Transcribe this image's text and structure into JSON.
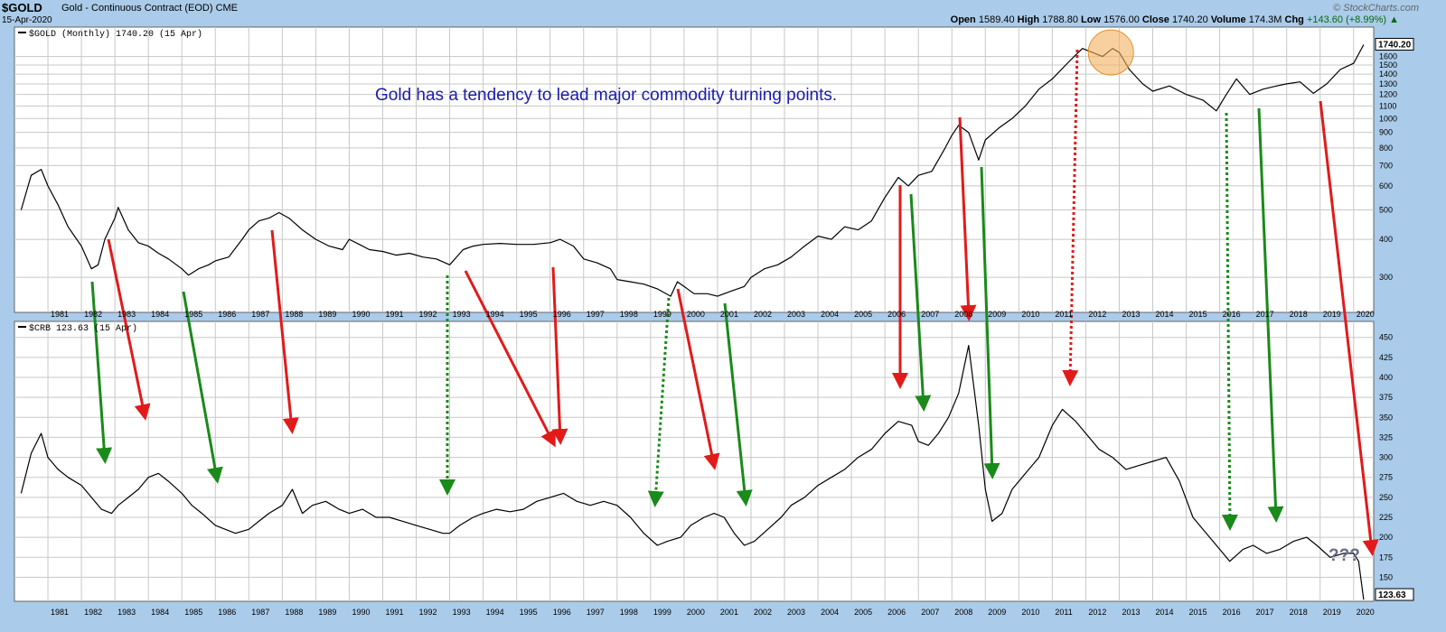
{
  "header": {
    "symbol": "$GOLD",
    "description": "Gold - Continuous Contract (EOD)",
    "exchange": "CME",
    "date": "15-Apr-2020",
    "brand": "© StockCharts.com",
    "open_label": "Open",
    "open": "1589.40",
    "high_label": "High",
    "high": "1788.80",
    "low_label": "Low",
    "low": "1576.00",
    "close_label": "Close",
    "close": "1740.20",
    "volume_label": "Volume",
    "volume": "174.3M",
    "chg_label": "Chg",
    "chg": "+143.60 (+8.99%)",
    "chg_arrow": "▲"
  },
  "colors": {
    "bg_frame": "#aacbe9",
    "plot_bg": "#ffffff",
    "grid": "#c8c8c8",
    "line": "#000000",
    "red_arrow": "#e21a1a",
    "green_arrow": "#1a8a1a",
    "annotation": "#1a1ab4",
    "highlight": "#f3b15f"
  },
  "chart_data": [
    {
      "type": "line",
      "series": [
        {
          "name": "$GOLD (Monthly)"
        }
      ],
      "legend": "$GOLD (Monthly) 1740.20 (15 Apr)",
      "last_value": "1740.20",
      "y_scale": "log",
      "ylim": [
        230,
        2000
      ],
      "yticks": [
        300,
        400,
        500,
        600,
        700,
        800,
        900,
        1000,
        1100,
        1200,
        1300,
        1400,
        1500,
        1600
      ],
      "ytick_labels": [
        "300",
        "400",
        "500",
        "600",
        "700",
        "800",
        "900",
        "1000",
        "1100",
        "1200",
        "1300",
        "1400",
        "1500",
        "1600"
      ],
      "annotation": "Gold has a tendency to lead major commodity turning points.",
      "highlight_circle": {
        "x": 2012.75,
        "y": 1650
      },
      "x": [
        1980.2,
        1980.5,
        1980.8,
        1981.0,
        1981.3,
        1981.6,
        1982.0,
        1982.3,
        1982.5,
        1982.7,
        1983.0,
        1983.1,
        1983.4,
        1983.7,
        1984.0,
        1984.3,
        1984.6,
        1985.0,
        1985.2,
        1985.5,
        1985.8,
        1986.0,
        1986.4,
        1986.8,
        1987.0,
        1987.3,
        1987.6,
        1987.9,
        1988.2,
        1988.6,
        1989.0,
        1989.4,
        1989.8,
        1990.0,
        1990.3,
        1990.6,
        1991.0,
        1991.4,
        1991.8,
        1992.2,
        1992.6,
        1993.0,
        1993.4,
        1993.7,
        1994.0,
        1994.5,
        1995.0,
        1995.5,
        1996.0,
        1996.3,
        1996.7,
        1997.0,
        1997.4,
        1997.8,
        1998.0,
        1998.4,
        1998.8,
        1999.2,
        1999.6,
        1999.8,
        2000.0,
        2000.3,
        2000.7,
        2001.0,
        2001.4,
        2001.8,
        2002.0,
        2002.4,
        2002.8,
        2003.2,
        2003.6,
        2004.0,
        2004.4,
        2004.8,
        2005.2,
        2005.6,
        2006.0,
        2006.4,
        2006.7,
        2007.0,
        2007.4,
        2007.8,
        2008.0,
        2008.2,
        2008.5,
        2008.8,
        2009.0,
        2009.4,
        2009.8,
        2010.2,
        2010.6,
        2011.0,
        2011.4,
        2011.7,
        2011.9,
        2012.2,
        2012.5,
        2012.8,
        2013.0,
        2013.3,
        2013.7,
        2014.0,
        2014.5,
        2015.0,
        2015.5,
        2015.9,
        2016.2,
        2016.5,
        2016.9,
        2017.3,
        2017.7,
        2018.0,
        2018.4,
        2018.8,
        2019.2,
        2019.6,
        2020.0,
        2020.3
      ],
      "values": [
        500,
        650,
        680,
        600,
        520,
        440,
        380,
        320,
        330,
        400,
        470,
        510,
        430,
        390,
        380,
        360,
        345,
        320,
        305,
        320,
        330,
        340,
        350,
        400,
        430,
        460,
        470,
        490,
        470,
        430,
        400,
        380,
        370,
        400,
        385,
        370,
        365,
        355,
        360,
        350,
        345,
        330,
        370,
        380,
        385,
        388,
        385,
        385,
        390,
        400,
        380,
        345,
        335,
        320,
        295,
        290,
        285,
        275,
        260,
        290,
        280,
        265,
        265,
        260,
        270,
        280,
        300,
        320,
        330,
        350,
        380,
        410,
        400,
        440,
        430,
        460,
        550,
        640,
        600,
        650,
        670,
        800,
        880,
        950,
        900,
        730,
        850,
        930,
        1000,
        1100,
        1250,
        1350,
        1500,
        1620,
        1700,
        1650,
        1600,
        1700,
        1650,
        1450,
        1300,
        1230,
        1280,
        1200,
        1150,
        1060,
        1200,
        1350,
        1200,
        1250,
        1280,
        1300,
        1320,
        1210,
        1300,
        1450,
        1520,
        1750
      ]
    },
    {
      "type": "line",
      "series": [
        {
          "name": "$CRB"
        }
      ],
      "legend": "$CRB 123.63 (15 Apr)",
      "last_value": "123.63",
      "ylim": [
        120,
        470
      ],
      "yticks": [
        150,
        175,
        200,
        225,
        250,
        275,
        300,
        325,
        350,
        375,
        400,
        425,
        450
      ],
      "ytick_labels": [
        "150",
        "175",
        "200",
        "225",
        "250",
        "275",
        "300",
        "325",
        "350",
        "375",
        "400",
        "425",
        "450"
      ],
      "annotation": "???",
      "x": [
        1980.2,
        1980.5,
        1980.8,
        1981.0,
        1981.3,
        1981.6,
        1982.0,
        1982.3,
        1982.6,
        1982.9,
        1983.1,
        1983.4,
        1983.7,
        1984.0,
        1984.3,
        1984.6,
        1985.0,
        1985.3,
        1985.6,
        1986.0,
        1986.3,
        1986.6,
        1987.0,
        1987.3,
        1987.6,
        1988.0,
        1988.3,
        1988.6,
        1988.9,
        1989.3,
        1989.7,
        1990.0,
        1990.4,
        1990.8,
        1991.2,
        1991.6,
        1992.0,
        1992.4,
        1992.8,
        1993.0,
        1993.3,
        1993.7,
        1994.0,
        1994.4,
        1994.8,
        1995.2,
        1995.6,
        1996.0,
        1996.4,
        1996.8,
        1997.2,
        1997.6,
        1998.0,
        1998.4,
        1998.8,
        1999.2,
        1999.5,
        1999.9,
        2000.2,
        2000.6,
        2000.9,
        2001.2,
        2001.5,
        2001.8,
        2002.1,
        2002.5,
        2002.9,
        2003.2,
        2003.6,
        2004.0,
        2004.4,
        2004.8,
        2005.2,
        2005.6,
        2006.0,
        2006.4,
        2006.8,
        2007.0,
        2007.3,
        2007.6,
        2007.9,
        2008.2,
        2008.5,
        2008.8,
        2009.0,
        2009.2,
        2009.5,
        2009.8,
        2010.2,
        2010.6,
        2011.0,
        2011.3,
        2011.7,
        2012.0,
        2012.4,
        2012.8,
        2013.2,
        2013.6,
        2014.0,
        2014.4,
        2014.8,
        2015.2,
        2015.6,
        2016.0,
        2016.3,
        2016.7,
        2017.0,
        2017.4,
        2017.8,
        2018.2,
        2018.6,
        2018.9,
        2019.3,
        2019.7,
        2020.0,
        2020.15,
        2020.3
      ],
      "values": [
        255,
        305,
        330,
        300,
        285,
        275,
        265,
        250,
        235,
        230,
        240,
        250,
        260,
        275,
        280,
        270,
        255,
        240,
        230,
        215,
        210,
        205,
        210,
        220,
        230,
        240,
        260,
        230,
        240,
        245,
        235,
        230,
        235,
        225,
        225,
        220,
        215,
        210,
        205,
        205,
        215,
        225,
        230,
        235,
        232,
        235,
        245,
        250,
        255,
        245,
        240,
        245,
        240,
        225,
        205,
        190,
        195,
        200,
        215,
        225,
        230,
        225,
        205,
        190,
        195,
        210,
        225,
        240,
        250,
        265,
        275,
        285,
        300,
        310,
        330,
        345,
        340,
        320,
        315,
        330,
        350,
        380,
        440,
        340,
        260,
        220,
        230,
        260,
        280,
        300,
        340,
        360,
        345,
        330,
        310,
        300,
        285,
        290,
        295,
        300,
        270,
        225,
        205,
        185,
        170,
        185,
        190,
        180,
        185,
        195,
        200,
        190,
        175,
        180,
        180,
        170,
        122
      ]
    }
  ],
  "x_axis": {
    "years": [
      "1981",
      "1982",
      "1983",
      "1984",
      "1985",
      "1986",
      "1987",
      "1988",
      "1989",
      "1990",
      "1991",
      "1992",
      "1993",
      "1994",
      "1995",
      "1996",
      "1997",
      "1998",
      "1999",
      "2000",
      "2001",
      "2002",
      "2003",
      "2004",
      "2005",
      "2006",
      "2007",
      "2008",
      "2009",
      "2010",
      "2011",
      "2012",
      "2013",
      "2014",
      "2015",
      "2016",
      "2017",
      "2018",
      "2019",
      "2020"
    ]
  }
}
